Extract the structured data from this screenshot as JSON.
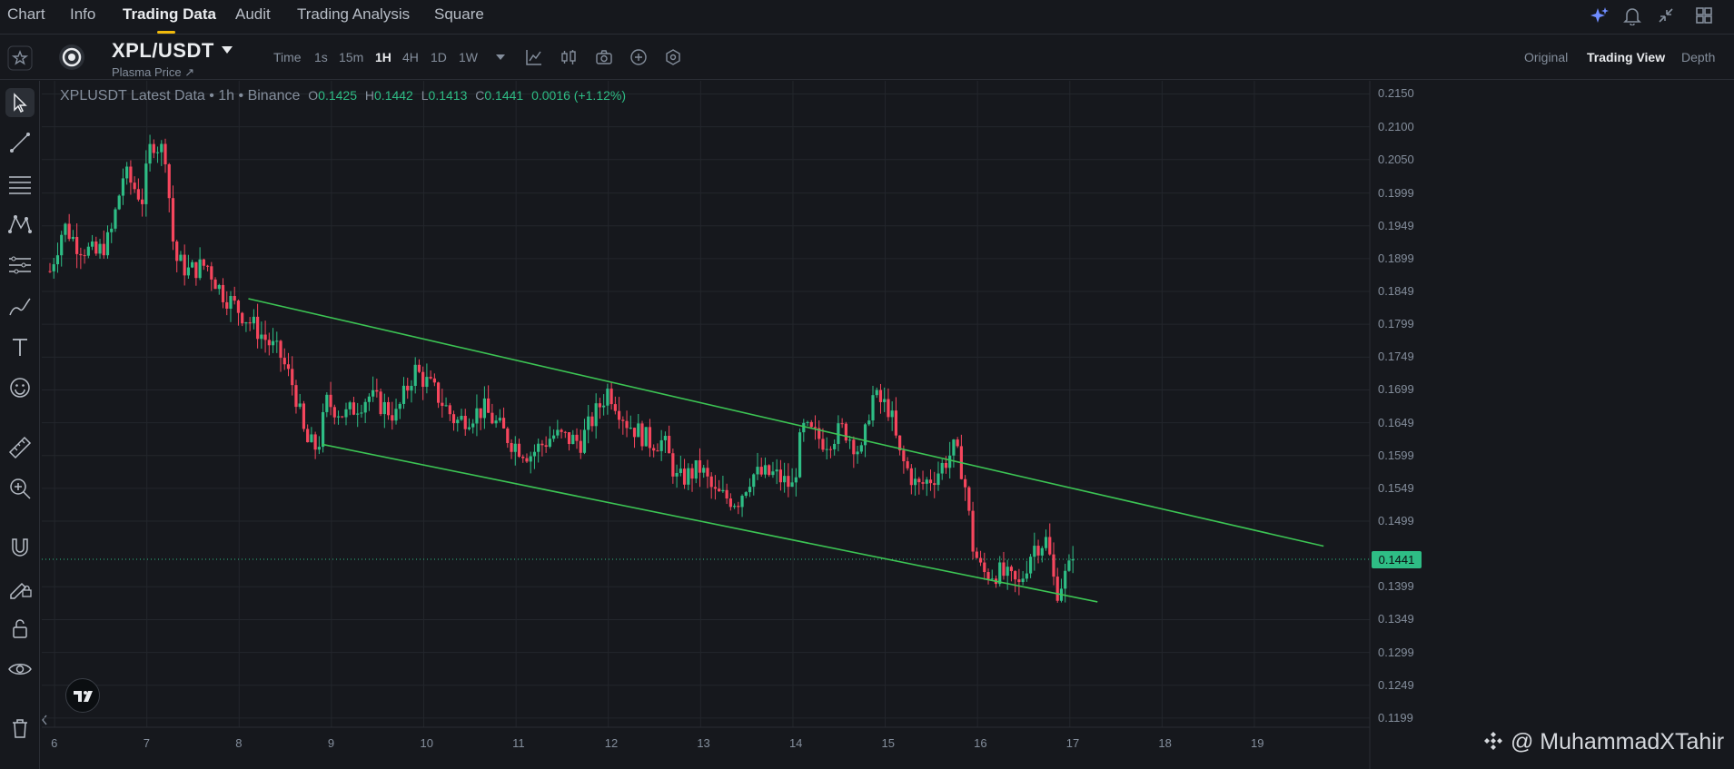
{
  "tabs": [
    {
      "label": "Chart",
      "active": false
    },
    {
      "label": "Info",
      "active": false
    },
    {
      "label": "Trading Data",
      "active": true
    },
    {
      "label": "Audit",
      "active": false
    },
    {
      "label": "Trading Analysis",
      "active": false
    },
    {
      "label": "Square",
      "active": false
    }
  ],
  "symbol": {
    "name": "XPL/USDT",
    "subtitle": "Plasma Price ↗"
  },
  "intervals": [
    "Time",
    "1s",
    "15m",
    "1H",
    "4H",
    "1D",
    "1W"
  ],
  "active_interval": "1H",
  "views": [
    {
      "label": "Original",
      "active": false
    },
    {
      "label": "Trading View",
      "active": true
    },
    {
      "label": "Depth",
      "active": false
    }
  ],
  "legend": {
    "title": "XPLUSDT Latest Data • 1h • Binance",
    "open_key": "O",
    "open": "0.1425",
    "high_key": "H",
    "high": "0.1442",
    "low_key": "L",
    "low": "0.1413",
    "close_key": "C",
    "close": "0.1441",
    "change": "0.0016 (+1.12%)"
  },
  "price_axis": [
    "0.2150",
    "0.2100",
    "0.2050",
    "0.1999",
    "0.1949",
    "0.1899",
    "0.1849",
    "0.1799",
    "0.1749",
    "0.1699",
    "0.1649",
    "0.1599",
    "0.1549",
    "0.1499",
    "0.1399",
    "0.1349",
    "0.1299",
    "0.1249",
    "0.1199"
  ],
  "current_price": "0.1441",
  "time_axis": [
    "6",
    "7",
    "8",
    "9",
    "10",
    "11",
    "12",
    "13",
    "14",
    "15",
    "16",
    "17",
    "18",
    "19"
  ],
  "watermark": "@ MuhammadXTahir",
  "colors": {
    "up": "#2ebd85",
    "down": "#f6465d",
    "trend": "#3cc454",
    "accent": "#f0b90b"
  },
  "left_tools": [
    "cursor-icon",
    "trendline-icon",
    "horizontal-lines-icon",
    "pattern-icon",
    "fib-icon",
    "brush-icon",
    "text-icon",
    "emoji-icon",
    "ruler-icon",
    "zoom-icon",
    "magnet-icon",
    "lock-pencil-icon",
    "lock-icon",
    "eye-icon",
    "trash-icon"
  ],
  "chart_data": {
    "type": "candlestick",
    "title": "XPLUSDT Latest Data • 1h • Binance",
    "x_ticks": [
      "6",
      "7",
      "8",
      "9",
      "10",
      "11",
      "12",
      "13",
      "14",
      "15",
      "16",
      "17",
      "18",
      "19"
    ],
    "ylim": [
      0.1185,
      0.217
    ],
    "anchors": [
      [
        5.95,
        0.188
      ],
      [
        6.1,
        0.195
      ],
      [
        6.25,
        0.192
      ],
      [
        6.45,
        0.1905
      ],
      [
        6.6,
        0.193
      ],
      [
        6.75,
        0.203
      ],
      [
        6.95,
        0.199
      ],
      [
        7.05,
        0.208
      ],
      [
        7.2,
        0.206
      ],
      [
        7.3,
        0.19
      ],
      [
        7.45,
        0.188
      ],
      [
        7.65,
        0.189
      ],
      [
        7.8,
        0.185
      ],
      [
        8.0,
        0.182
      ],
      [
        8.2,
        0.179
      ],
      [
        8.45,
        0.175
      ],
      [
        8.6,
        0.17
      ],
      [
        8.72,
        0.162
      ],
      [
        8.85,
        0.161
      ],
      [
        8.95,
        0.168
      ],
      [
        9.15,
        0.166
      ],
      [
        9.4,
        0.169
      ],
      [
        9.7,
        0.166
      ],
      [
        9.9,
        0.173
      ],
      [
        10.1,
        0.17
      ],
      [
        10.35,
        0.165
      ],
      [
        10.65,
        0.167
      ],
      [
        10.95,
        0.162
      ],
      [
        11.15,
        0.16
      ],
      [
        11.4,
        0.163
      ],
      [
        11.7,
        0.162
      ],
      [
        11.85,
        0.166
      ],
      [
        12.0,
        0.17
      ],
      [
        12.2,
        0.165
      ],
      [
        12.45,
        0.162
      ],
      [
        12.6,
        0.162
      ],
      [
        12.75,
        0.156
      ],
      [
        13.0,
        0.158
      ],
      [
        13.15,
        0.154
      ],
      [
        13.4,
        0.153
      ],
      [
        13.55,
        0.157
      ],
      [
        13.8,
        0.157
      ],
      [
        14.0,
        0.155
      ],
      [
        14.1,
        0.164
      ],
      [
        14.35,
        0.162
      ],
      [
        14.55,
        0.164
      ],
      [
        14.75,
        0.16
      ],
      [
        14.85,
        0.169
      ],
      [
        15.05,
        0.167
      ],
      [
        15.15,
        0.16
      ],
      [
        15.35,
        0.155
      ],
      [
        15.55,
        0.157
      ],
      [
        15.75,
        0.161
      ],
      [
        15.85,
        0.157
      ],
      [
        15.95,
        0.146
      ],
      [
        16.05,
        0.142
      ],
      [
        16.25,
        0.142
      ],
      [
        16.45,
        0.14
      ],
      [
        16.6,
        0.146
      ],
      [
        16.75,
        0.147
      ],
      [
        16.85,
        0.139
      ],
      [
        16.95,
        0.1415
      ],
      [
        17.05,
        0.1441
      ]
    ],
    "trendlines": [
      {
        "from": [
          8.1,
          0.1838
        ],
        "to": [
          19.75,
          0.1461
        ]
      },
      {
        "from": [
          8.9,
          0.1616
        ],
        "to": [
          17.3,
          0.1376
        ]
      }
    ],
    "current_price": 0.1441,
    "last_close": 0.1441,
    "grid": true
  }
}
